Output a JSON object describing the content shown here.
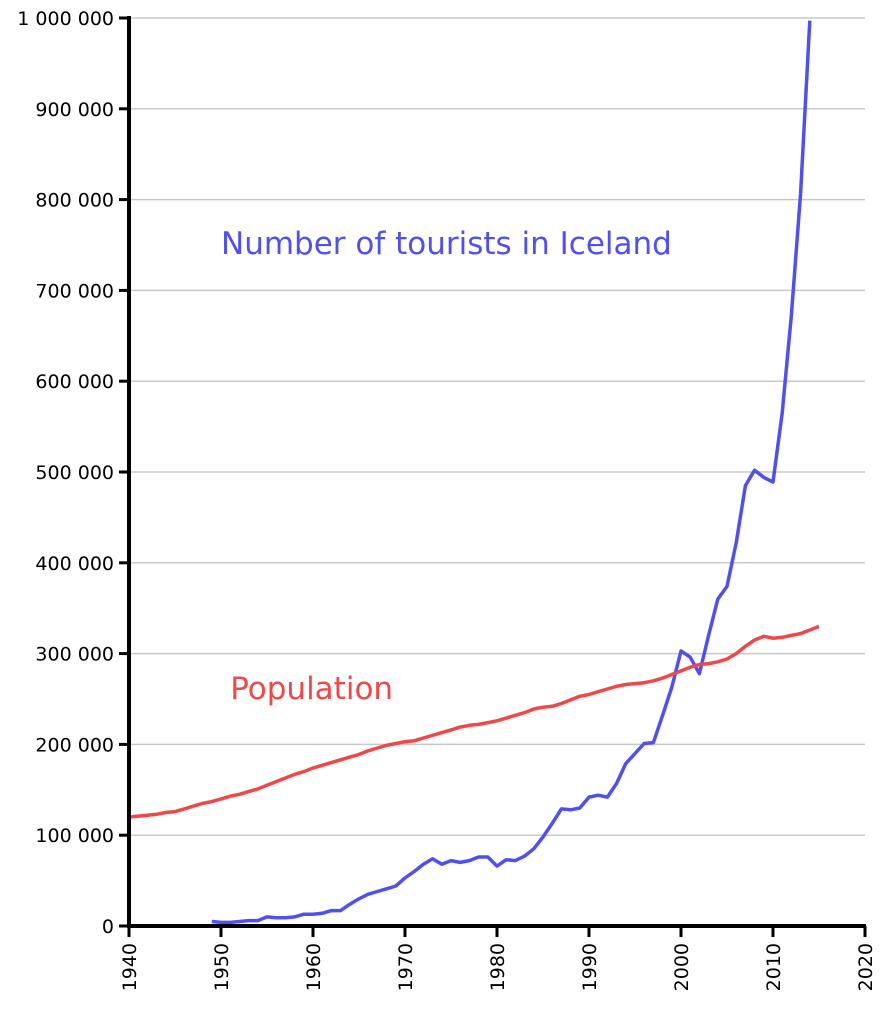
{
  "chart_data": {
    "type": "line",
    "title": "",
    "xlabel": "",
    "ylabel": "",
    "xlim": [
      1940,
      2020
    ],
    "ylim": [
      0,
      1000000
    ],
    "x_ticks": [
      1940,
      1950,
      1960,
      1970,
      1980,
      1990,
      2000,
      2010,
      2020
    ],
    "x_tick_labels": [
      "1940",
      "1950",
      "1960",
      "1970",
      "1980",
      "1990",
      "2000",
      "2010",
      "2020"
    ],
    "y_ticks": [
      0,
      100000,
      200000,
      300000,
      400000,
      500000,
      600000,
      700000,
      800000,
      900000,
      1000000
    ],
    "y_tick_labels": [
      "0",
      "100 000",
      "200 000",
      "300 000",
      "400 000",
      "500 000",
      "600 000",
      "700 000",
      "800 000",
      "900 000",
      "1 000 000"
    ],
    "grid": "horizontal",
    "legend": "inline labels",
    "series": [
      {
        "name": "Number of tourists in Iceland",
        "color": "#5050f0",
        "x": [
          1949,
          1950,
          1951,
          1952,
          1953,
          1954,
          1955,
          1956,
          1957,
          1958,
          1959,
          1960,
          1961,
          1962,
          1963,
          1964,
          1965,
          1966,
          1967,
          1968,
          1969,
          1970,
          1971,
          1972,
          1973,
          1974,
          1975,
          1976,
          1977,
          1978,
          1979,
          1980,
          1981,
          1982,
          1983,
          1984,
          1985,
          1986,
          1987,
          1988,
          1989,
          1990,
          1991,
          1992,
          1993,
          1994,
          1995,
          1996,
          1997,
          1998,
          1999,
          2000,
          2001,
          2002,
          2003,
          2004,
          2005,
          2006,
          2007,
          2008,
          2009,
          2010,
          2011,
          2012,
          2013,
          2014
        ],
        "values": [
          5000,
          4000,
          4000,
          5000,
          6000,
          6000,
          10000,
          9000,
          9000,
          10000,
          13000,
          13000,
          14000,
          17000,
          17000,
          24000,
          30000,
          35000,
          38000,
          41000,
          44000,
          53000,
          60000,
          68000,
          74000,
          68000,
          72000,
          70000,
          72000,
          76000,
          76000,
          66000,
          73000,
          72000,
          77000,
          85000,
          98000,
          113000,
          129000,
          128000,
          130000,
          142000,
          144000,
          142000,
          157000,
          179000,
          190000,
          201000,
          202000,
          232000,
          263000,
          303000,
          296000,
          278000,
          320000,
          360000,
          374000,
          422000,
          485000,
          502000,
          494000,
          489000,
          565000,
          673000,
          807000,
          997000
        ]
      },
      {
        "name": "Population",
        "color": "#f04848",
        "x": [
          1940,
          1941,
          1942,
          1943,
          1944,
          1945,
          1946,
          1947,
          1948,
          1949,
          1950,
          1951,
          1952,
          1953,
          1954,
          1955,
          1956,
          1957,
          1958,
          1959,
          1960,
          1961,
          1962,
          1963,
          1964,
          1965,
          1966,
          1967,
          1968,
          1969,
          1970,
          1971,
          1972,
          1973,
          1974,
          1975,
          1976,
          1977,
          1978,
          1979,
          1980,
          1981,
          1982,
          1983,
          1984,
          1985,
          1986,
          1987,
          1988,
          1989,
          1990,
          1991,
          1992,
          1993,
          1994,
          1995,
          1996,
          1997,
          1998,
          1999,
          2000,
          2001,
          2002,
          2003,
          2004,
          2005,
          2006,
          2007,
          2008,
          2009,
          2010,
          2011,
          2012,
          2013,
          2014,
          2015
        ],
        "values": [
          120000,
          121000,
          122000,
          123000,
          125000,
          126000,
          129000,
          132000,
          135000,
          137000,
          140000,
          143000,
          145000,
          148000,
          151000,
          155000,
          159000,
          163000,
          167000,
          170000,
          174000,
          177000,
          180000,
          183000,
          186000,
          189000,
          193000,
          196000,
          199000,
          201000,
          203000,
          204000,
          207000,
          210000,
          213000,
          216000,
          219000,
          221000,
          222000,
          224000,
          226000,
          229000,
          232000,
          235000,
          239000,
          241000,
          242000,
          245000,
          249000,
          253000,
          255000,
          258000,
          261000,
          264000,
          266000,
          267000,
          268000,
          270000,
          273000,
          277000,
          281000,
          285000,
          288000,
          289000,
          291000,
          294000,
          300000,
          308000,
          315000,
          319000,
          317000,
          318000,
          320000,
          322000,
          326000,
          330000
        ]
      }
    ],
    "annotations": [
      {
        "text": "Number of tourists in Iceland",
        "color": "#5050f0",
        "x": 1950,
        "y": 740000
      },
      {
        "text": "Population",
        "color": "#f04848",
        "x": 1951,
        "y": 250000
      }
    ]
  }
}
